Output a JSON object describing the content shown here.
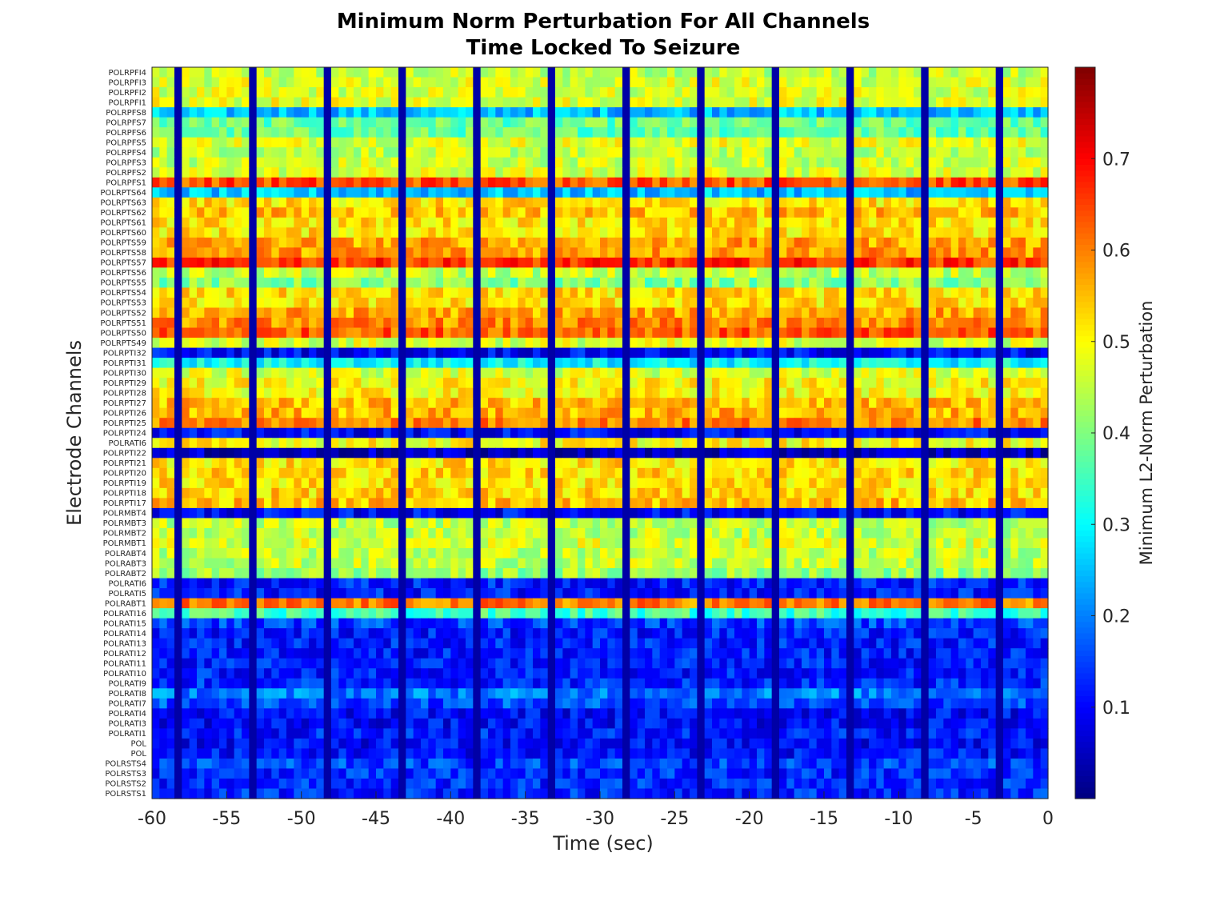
{
  "chart_data": {
    "type": "heatmap",
    "title": [
      "Minimum Norm Perturbation For All Channels",
      "Time Locked To Seizure"
    ],
    "xlabel": "Time (sec)",
    "ylabel": "Electrode Channels",
    "colorbar_label": "Minimum L2-Norm Perturbation",
    "colormap": "jet",
    "clim": [
      0,
      0.8
    ],
    "colorbar_ticks": [
      0.1,
      0.2,
      0.3,
      0.4,
      0.5,
      0.6,
      0.7
    ],
    "colorbar_tick_labels": [
      "0.1",
      "0.2",
      "0.3",
      "0.4",
      "0.5",
      "0.6",
      "0.7"
    ],
    "xlim": [
      -60,
      0
    ],
    "xticks": [
      -60,
      -55,
      -50,
      -45,
      -40,
      -35,
      -30,
      -25,
      -20,
      -15,
      -10,
      -5,
      0
    ],
    "xtick_labels": [
      "-60",
      "-55",
      "-50",
      "-45",
      "-40",
      "-35",
      "-30",
      "-25",
      "-20",
      "-15",
      "-10",
      "-5",
      "0"
    ],
    "time_step_sec": 0.5,
    "window_boundaries_sec": [
      -58.5,
      -53.5,
      -48.5,
      -43.5,
      -38.5,
      -33.5,
      -28.5,
      -23.5,
      -18.5,
      -13.5,
      -8.5,
      -3.5
    ],
    "channels": [
      "POLRPFI4",
      "POLRPFI3",
      "POLRPFI2",
      "POLRPFI1",
      "POLRPFS8",
      "POLRPFS7",
      "POLRPFS6",
      "POLRPFS5",
      "POLRPFS4",
      "POLRPFS3",
      "POLRPFS2",
      "POLRPFS1",
      "POLRPTS64",
      "POLRPTS63",
      "POLRPTS62",
      "POLRPTS61",
      "POLRPTS60",
      "POLRPTS59",
      "POLRPTS58",
      "POLRPTS57",
      "POLRPTS56",
      "POLRPTS55",
      "POLRPTS54",
      "POLRPTS53",
      "POLRPTS52",
      "POLRPTS51",
      "POLRPTS50",
      "POLRPTS49",
      "POLRPTI32",
      "POLRPTI31",
      "POLRPTI30",
      "POLRPTI29",
      "POLRPTI28",
      "POLRPTI27",
      "POLRPTI26",
      "POLRPTI25",
      "POLRPTI24",
      "POLRATI6",
      "POLRPTI22",
      "POLRPTI21",
      "POLRPTI20",
      "POLRPTI19",
      "POLRPTI18",
      "POLRPTI17",
      "POLRMBT4",
      "POLRMBT3",
      "POLRMBT2",
      "POLRMBT1",
      "POLRABT4",
      "POLRABT3",
      "POLRABT2",
      "POLRATI6",
      "POLRATI5",
      "POLRABT1",
      "POLRATI16",
      "POLRATI15",
      "POLRATI14",
      "POLRATI13",
      "POLRATI12",
      "POLRATI11",
      "POLRATI10",
      "POLRATI9",
      "POLRATI8",
      "POLRATI7",
      "POLRATI4",
      "POLRATI3",
      "POLRATI1",
      "POL",
      "POL",
      "POLRSTS4",
      "POLRSTS3",
      "POLRSTS2",
      "POLRSTS1"
    ],
    "channel_mean_values": [
      0.45,
      0.47,
      0.47,
      0.48,
      0.25,
      0.38,
      0.38,
      0.48,
      0.45,
      0.46,
      0.47,
      0.64,
      0.25,
      0.52,
      0.55,
      0.52,
      0.52,
      0.57,
      0.58,
      0.66,
      0.45,
      0.4,
      0.52,
      0.52,
      0.57,
      0.59,
      0.63,
      0.47,
      0.1,
      0.3,
      0.47,
      0.5,
      0.5,
      0.55,
      0.56,
      0.6,
      0.1,
      0.5,
      0.05,
      0.52,
      0.53,
      0.52,
      0.53,
      0.55,
      0.1,
      0.45,
      0.45,
      0.47,
      0.45,
      0.45,
      0.42,
      0.12,
      0.12,
      0.6,
      0.35,
      0.15,
      0.12,
      0.12,
      0.12,
      0.12,
      0.12,
      0.13,
      0.2,
      0.16,
      0.1,
      0.1,
      0.12,
      0.1,
      0.11,
      0.15,
      0.13,
      0.13,
      0.13
    ],
    "channel_variation": 0.06,
    "boundary_value": 0.03
  }
}
